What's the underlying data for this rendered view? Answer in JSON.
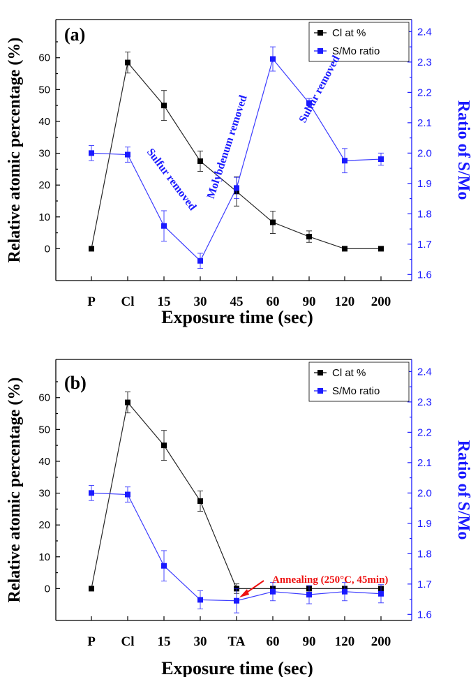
{
  "colors": {
    "cl_series": "#000000",
    "smo_series": "#1a1aff",
    "right_axis": "#1a1aff",
    "annotation_blue": "#1a1aff",
    "annotation_red": "#ee1111"
  },
  "chart_data": [
    {
      "type": "line",
      "panel_label": "(a)",
      "categories": [
        "P",
        "Cl",
        "15",
        "30",
        "45",
        "60",
        "90",
        "120",
        "200"
      ],
      "xlabel": "Exposure time (sec)",
      "ylabel": "Relative atomic percentage (%)",
      "ylabel_right": "Ratio of S/Mo",
      "ylim": [
        -10,
        72
      ],
      "ylim_right": [
        1.58,
        2.44
      ],
      "yticks": [
        0,
        10,
        20,
        30,
        40,
        50,
        60
      ],
      "yticks_right": [
        1.6,
        1.7,
        1.8,
        1.9,
        2.0,
        2.1,
        2.2,
        2.3,
        2.4
      ],
      "legend_position": "top-right",
      "series": [
        {
          "name": "Cl at %",
          "axis": "left",
          "values": [
            0,
            58.5,
            45,
            27.5,
            18,
            8.3,
            3.8,
            0,
            0
          ],
          "errors": [
            0,
            3.3,
            4.7,
            3.2,
            4.6,
            3.5,
            1.8,
            0,
            0
          ]
        },
        {
          "name": "S/Mo ratio",
          "axis": "right",
          "values": [
            2.0,
            1.995,
            1.76,
            1.645,
            1.885,
            2.31,
            2.165,
            1.975,
            1.98
          ],
          "errors": [
            0.025,
            0.025,
            0.05,
            0.025,
            0.035,
            0.04,
            0.015,
            0.04,
            0.02
          ]
        }
      ],
      "annotations": [
        {
          "text": "Sulfur removed",
          "color": "blue"
        },
        {
          "text": "Molybdenum removed",
          "color": "blue"
        },
        {
          "text": "Sulfur removed",
          "color": "blue"
        }
      ]
    },
    {
      "type": "line",
      "panel_label": "(b)",
      "categories": [
        "P",
        "Cl",
        "15",
        "30",
        "TA",
        "60",
        "90",
        "120",
        "200"
      ],
      "xlabel": "Exposure time (sec)",
      "ylabel": "Relative atomic percentage (%)",
      "ylabel_right": "Ratio of S/Mo",
      "ylim": [
        -10,
        72
      ],
      "ylim_right": [
        1.58,
        2.44
      ],
      "yticks": [
        0,
        10,
        20,
        30,
        40,
        50,
        60
      ],
      "yticks_right": [
        1.6,
        1.7,
        1.8,
        1.9,
        2.0,
        2.1,
        2.2,
        2.3,
        2.4
      ],
      "legend_position": "top-right",
      "series": [
        {
          "name": "Cl at %",
          "axis": "left",
          "values": [
            0,
            58.5,
            45,
            27.5,
            0,
            0,
            0,
            0,
            0
          ],
          "errors": [
            0,
            3.3,
            4.7,
            3.2,
            1.5,
            0,
            0,
            0,
            0
          ]
        },
        {
          "name": "S/Mo ratio",
          "axis": "right",
          "values": [
            2.0,
            1.995,
            1.76,
            1.648,
            1.645,
            1.675,
            1.665,
            1.675,
            1.668
          ],
          "errors": [
            0.025,
            0.025,
            0.05,
            0.03,
            0.04,
            0.03,
            0.03,
            0.03,
            0.03
          ]
        }
      ],
      "annotations": [
        {
          "text": "Annealing (250°C, 45min)",
          "color": "red"
        }
      ]
    }
  ]
}
